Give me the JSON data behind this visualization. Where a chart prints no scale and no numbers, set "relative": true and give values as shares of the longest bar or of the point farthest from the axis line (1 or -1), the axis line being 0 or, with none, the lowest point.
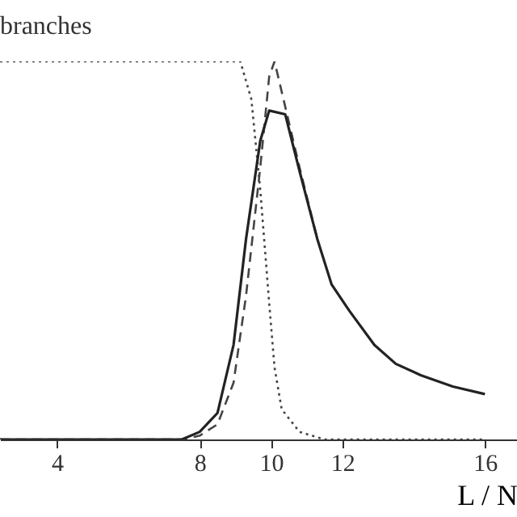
{
  "chart_data": {
    "type": "line",
    "title": "branches",
    "xlabel": "L / N",
    "relative": true,
    "xlim": [
      2.4,
      16.9
    ],
    "xticks": [
      4,
      8,
      10,
      12,
      16
    ],
    "grid": false,
    "series": [
      {
        "color": "#444444",
        "line_style": "dotted",
        "x": [
          2.4,
          5,
          9.14,
          9.45,
          9.7,
          9.95,
          10.1,
          10.3,
          10.8,
          11.5,
          16
        ],
        "values": [
          1,
          1,
          1,
          0.9,
          0.66,
          0.36,
          0.19,
          0.08,
          0.02,
          0,
          0
        ]
      },
      {
        "color": "#444444",
        "line_style": "dashed",
        "x": [
          2.4,
          7.5,
          8,
          8.5,
          8.95,
          9.3,
          9.7,
          9.95,
          10.1,
          10.4,
          10.6,
          10.8,
          11.3
        ],
        "values": [
          0,
          0,
          0.01,
          0.04,
          0.15,
          0.38,
          0.72,
          0.96,
          1,
          0.88,
          0.8,
          0.72,
          0.53
        ]
      },
      {
        "color": "#222222",
        "line_style": "solid",
        "x": [
          2.4,
          7.5,
          8,
          8.5,
          8.95,
          9.3,
          9.7,
          9.95,
          10.4,
          10.8,
          11.3,
          11.7,
          12.2,
          12.9,
          13.5,
          14.2,
          15.1,
          16
        ],
        "values": [
          0,
          0,
          0.02,
          0.07,
          0.25,
          0.53,
          0.79,
          0.87,
          0.86,
          0.71,
          0.53,
          0.41,
          0.34,
          0.25,
          0.2,
          0.17,
          0.14,
          0.12
        ]
      }
    ]
  }
}
